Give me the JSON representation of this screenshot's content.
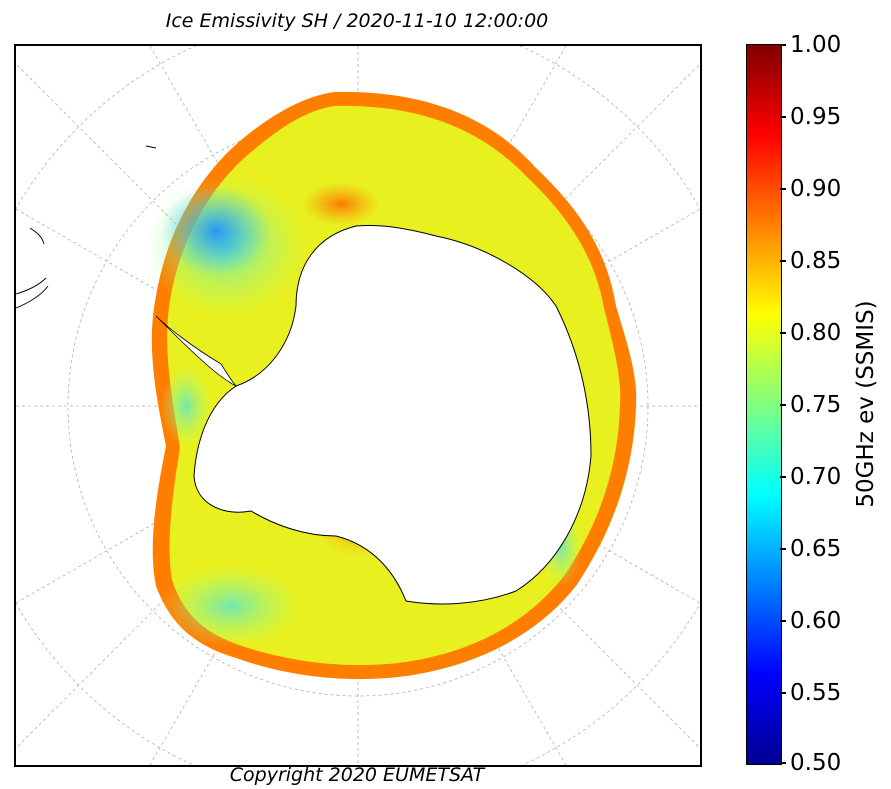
{
  "title": "Ice Emissivity SH / 2020-11-10 12:00:00",
  "copyright": "Copyright 2020 EUMETSAT",
  "colorbar": {
    "label": "50GHz ev (SSMIS)",
    "colormap": "jet",
    "range": [
      0.5,
      1.0
    ],
    "ticks": [
      "1.00",
      "0.95",
      "0.90",
      "0.85",
      "0.80",
      "0.75",
      "0.70",
      "0.65",
      "0.60",
      "0.55",
      "0.50"
    ]
  },
  "map": {
    "projection": "south polar stereographic",
    "colors": {
      "land": "#ffffff",
      "coastline": "#000000",
      "gridlines": "#b0b0b0"
    }
  }
}
